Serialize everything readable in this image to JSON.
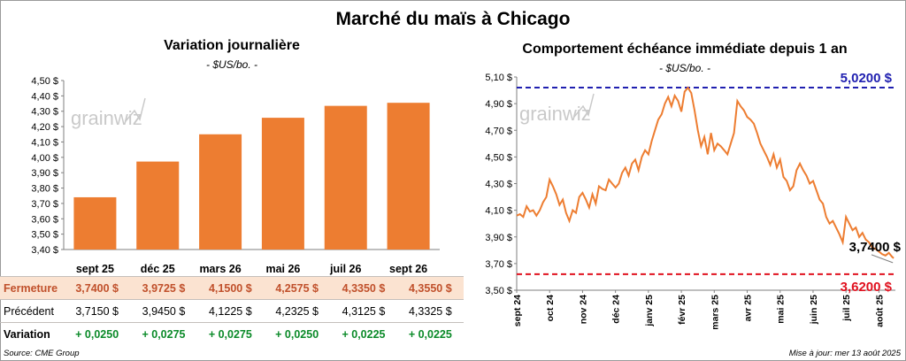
{
  "title": "Marché du maïs à Chicago",
  "colors": {
    "bar": "#ed7d31",
    "line": "#ed7d31",
    "max_line": "#2020b0",
    "min_line": "#e0101e",
    "positive": "#0a8a28",
    "closing_text": "#c0502b"
  },
  "left": {
    "title": "Variation journalière",
    "unit": "- $US/bo. -",
    "watermark": "grainwiz"
  },
  "right": {
    "title": "Comportement échéance immédiate depuis 1 an",
    "unit": "- $US/bo. -",
    "watermark": "grainwiz"
  },
  "table": {
    "row_labels": {
      "close": "Fermeture",
      "prev": "Précédent",
      "var": "Variation"
    },
    "close": [
      "3,7400  $",
      "3,9725  $",
      "4,1500  $",
      "4,2575  $",
      "4,3350  $",
      "4,3550  $"
    ],
    "prev": [
      "3,7150  $",
      "3,9450  $",
      "4,1225  $",
      "4,2325  $",
      "4,3125  $",
      "4,3325  $"
    ],
    "var": [
      "+ 0,0250",
      "+ 0,0275",
      "+ 0,0275",
      "+ 0,0250",
      "+ 0,0225",
      "+ 0,0225"
    ]
  },
  "footer": {
    "source": "Source: CME Group",
    "updated": "Mise à jour: mer 13 août 2025"
  },
  "chart_data": [
    {
      "type": "bar",
      "title": "Variation journalière",
      "categories": [
        "sept 25",
        "déc 25",
        "mars 26",
        "mai 26",
        "juil 26",
        "sept 26"
      ],
      "values": [
        3.74,
        3.9725,
        4.15,
        4.2575,
        4.335,
        4.355
      ],
      "ylim": [
        3.4,
        4.5
      ],
      "yticks": [
        3.4,
        3.5,
        3.6,
        3.7,
        3.8,
        3.9,
        4.0,
        4.1,
        4.2,
        4.3,
        4.4,
        4.5
      ],
      "ytick_labels": [
        "3,40 $",
        "3,50 $",
        "3,60 $",
        "3,70 $",
        "3,80 $",
        "3,90 $",
        "4,00 $",
        "4,10 $",
        "4,20 $",
        "4,30 $",
        "4,40 $",
        "4,50 $"
      ],
      "grid": false
    },
    {
      "type": "line",
      "title": "Comportement échéance immédiate depuis 1 an",
      "x_labels": [
        "sept 24",
        "oct 24",
        "nov 24",
        "déc 24",
        "janv 25",
        "févr 25",
        "mars 25",
        "avr 25",
        "mai 25",
        "juin 25",
        "juil 25",
        "août 25"
      ],
      "x_range": [
        0,
        11.5
      ],
      "ylim": [
        3.5,
        5.1
      ],
      "yticks": [
        3.5,
        3.7,
        3.9,
        4.1,
        4.3,
        4.5,
        4.7,
        4.9,
        5.1
      ],
      "ytick_labels": [
        "3,50 $",
        "3,70 $",
        "3,90 $",
        "4,10 $",
        "4,30 $",
        "4,50 $",
        "4,70 $",
        "4,90 $",
        "5,10 $"
      ],
      "x": [
        0,
        0.1,
        0.2,
        0.3,
        0.4,
        0.5,
        0.6,
        0.7,
        0.8,
        0.9,
        1.0,
        1.1,
        1.2,
        1.3,
        1.4,
        1.5,
        1.6,
        1.7,
        1.8,
        1.9,
        2.0,
        2.1,
        2.2,
        2.3,
        2.4,
        2.5,
        2.6,
        2.7,
        2.8,
        2.9,
        3.0,
        3.1,
        3.2,
        3.3,
        3.4,
        3.5,
        3.6,
        3.7,
        3.8,
        3.9,
        4.0,
        4.1,
        4.2,
        4.3,
        4.4,
        4.5,
        4.6,
        4.7,
        4.8,
        4.9,
        5.0,
        5.1,
        5.2,
        5.3,
        5.4,
        5.5,
        5.6,
        5.7,
        5.8,
        5.9,
        6.0,
        6.1,
        6.2,
        6.3,
        6.4,
        6.5,
        6.6,
        6.7,
        6.8,
        6.9,
        7.0,
        7.1,
        7.2,
        7.3,
        7.4,
        7.5,
        7.6,
        7.7,
        7.8,
        7.9,
        8.0,
        8.1,
        8.2,
        8.3,
        8.4,
        8.5,
        8.6,
        8.7,
        8.8,
        8.9,
        9.0,
        9.1,
        9.2,
        9.3,
        9.4,
        9.5,
        9.6,
        9.7,
        9.8,
        9.9,
        10.0,
        10.1,
        10.2,
        10.3,
        10.4,
        10.5,
        10.6,
        10.7,
        10.8,
        10.9,
        11.0,
        11.1,
        11.2,
        11.3,
        11.4,
        11.45
      ],
      "y": [
        4.06,
        4.07,
        4.05,
        4.13,
        4.09,
        4.1,
        4.06,
        4.1,
        4.16,
        4.2,
        4.33,
        4.28,
        4.22,
        4.14,
        4.18,
        4.08,
        4.02,
        4.1,
        4.08,
        4.2,
        4.23,
        4.18,
        4.12,
        4.22,
        4.15,
        4.28,
        4.26,
        4.25,
        4.33,
        4.3,
        4.27,
        4.3,
        4.38,
        4.42,
        4.36,
        4.45,
        4.48,
        4.4,
        4.5,
        4.55,
        4.52,
        4.62,
        4.7,
        4.78,
        4.82,
        4.9,
        4.95,
        4.88,
        4.96,
        4.92,
        4.84,
        4.99,
        5.02,
        4.98,
        4.85,
        4.7,
        4.58,
        4.65,
        4.52,
        4.68,
        4.55,
        4.6,
        4.58,
        4.55,
        4.52,
        4.6,
        4.68,
        4.92,
        4.88,
        4.85,
        4.8,
        4.78,
        4.75,
        4.68,
        4.6,
        4.55,
        4.5,
        4.44,
        4.52,
        4.42,
        4.48,
        4.35,
        4.32,
        4.25,
        4.28,
        4.4,
        4.45,
        4.4,
        4.36,
        4.3,
        4.32,
        4.25,
        4.18,
        4.15,
        4.05,
        4.0,
        4.02,
        3.97,
        3.92,
        3.86,
        4.05,
        4.0,
        3.95,
        3.97,
        3.9,
        3.93,
        3.88,
        3.86,
        3.82,
        3.81,
        3.79,
        3.77,
        3.76,
        3.78,
        3.75,
        3.74
      ],
      "reference_lines": [
        {
          "name": "max",
          "value": 5.02,
          "label": "5,0200 $"
        },
        {
          "name": "min",
          "value": 3.62,
          "label": "3,6200 $"
        }
      ],
      "last_value": {
        "value": 3.74,
        "label": "3,7400 $"
      },
      "grid": false
    }
  ]
}
